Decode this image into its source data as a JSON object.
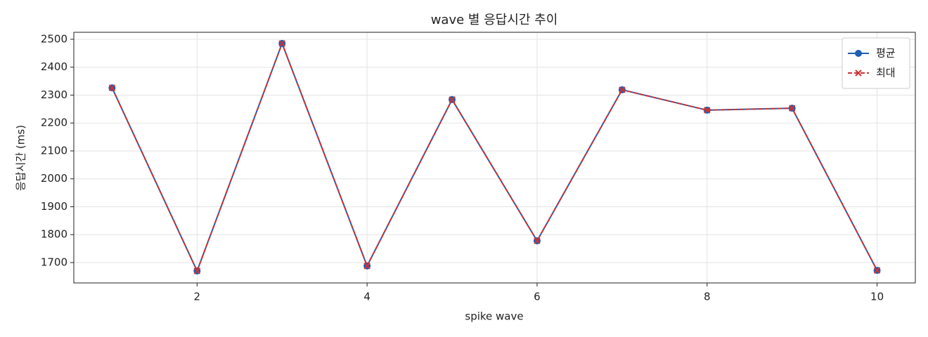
{
  "chart_data": {
    "type": "line",
    "title": "wave 별 응답시간 추이",
    "x_label": "spike wave",
    "y_label": "응답시간 (ms)",
    "x": [
      1,
      2,
      3,
      4,
      5,
      6,
      7,
      8,
      9,
      10
    ],
    "series": [
      {
        "name": "평균",
        "color": "#1f5fb4",
        "marker": "circle",
        "dash": false,
        "values": [
          2326,
          1670,
          2485,
          1688,
          2284,
          1778,
          2319,
          2246,
          2253,
          1672
        ]
      },
      {
        "name": "최대",
        "color": "#cc3333",
        "marker": "x",
        "dash": true,
        "values": [
          2326,
          1670,
          2485,
          1688,
          2284,
          1778,
          2319,
          2246,
          2253,
          1672
        ]
      }
    ],
    "xlim": [
      0.55,
      10.45
    ],
    "xticks": [
      2,
      4,
      6,
      8,
      10
    ],
    "ylim": [
      1627,
      2525
    ],
    "yticks": [
      1700,
      1800,
      1900,
      2000,
      2100,
      2200,
      2300,
      2400,
      2500
    ],
    "grid": true,
    "legend_position": "upper right"
  }
}
